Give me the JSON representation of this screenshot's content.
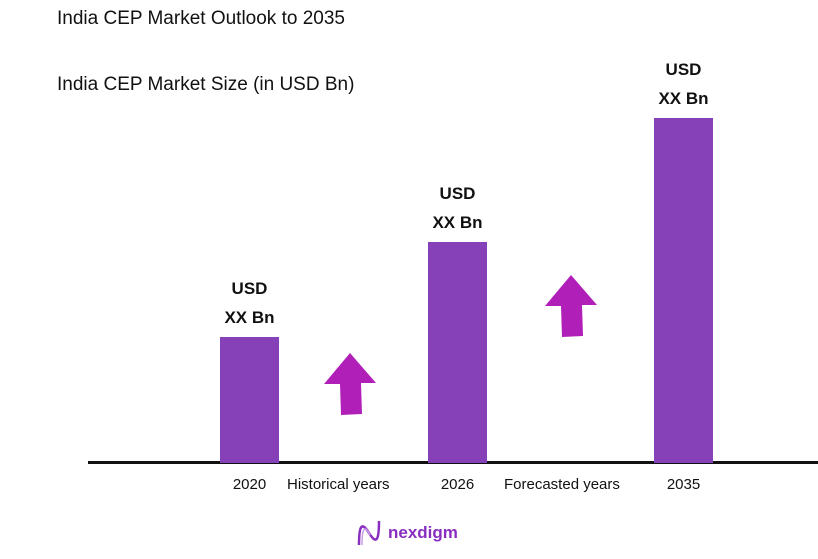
{
  "chart_data": {
    "type": "bar",
    "title": "India CEP Market Outlook to 2035",
    "subtitle": "India CEP Market Size (in USD Bn)",
    "categories": [
      "2020",
      "2026",
      "2035"
    ],
    "values_relative_2035_eq_100": [
      36.5,
      64,
      100
    ],
    "data_labels": [
      [
        "USD",
        "XX Bn"
      ],
      [
        "USD",
        "XX Bn"
      ],
      [
        "USD",
        "XX Bn"
      ]
    ],
    "period_labels": [
      "Historical years",
      "Forecasted years"
    ],
    "grid": false,
    "bar_color": "#8640b8",
    "arrow_color": "#b020b8"
  },
  "brand": {
    "name": "nexdigm"
  }
}
